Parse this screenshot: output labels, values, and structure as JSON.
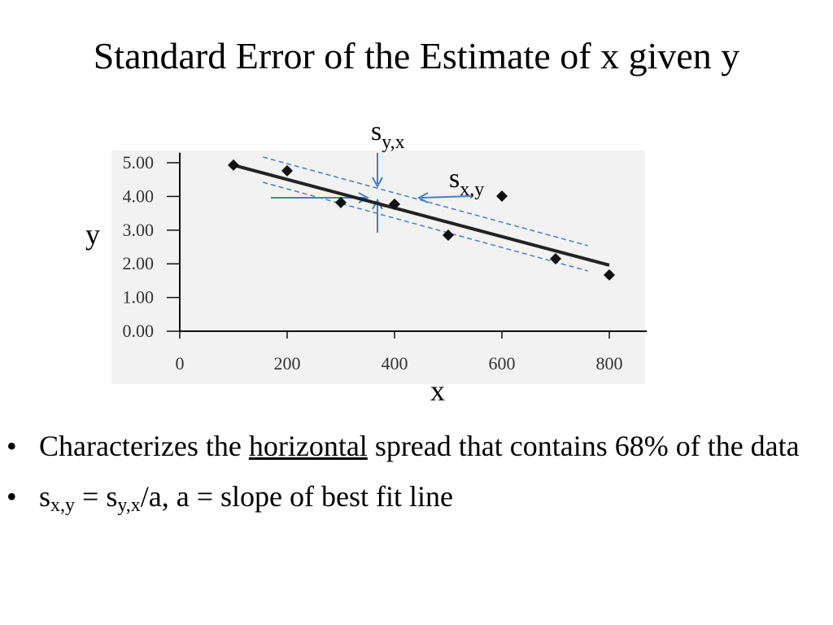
{
  "title": "Standard Error of the Estimate of x given y",
  "chart_data": {
    "type": "scatter",
    "x_label": "x",
    "y_label": "y",
    "x": [
      100,
      200,
      300,
      400,
      500,
      600,
      700,
      800
    ],
    "values": [
      4.93,
      4.76,
      3.82,
      3.77,
      2.85,
      4.01,
      2.15,
      1.67
    ],
    "color": "#111111",
    "fit_line": {
      "x": [
        100,
        800
      ],
      "y": [
        4.93,
        1.96
      ],
      "color": "#222222"
    },
    "bands": [
      {
        "x": [
          155,
          760
        ],
        "y": [
          5.17,
          2.54
        ],
        "color": "#4a7fc1"
      },
      {
        "x": [
          155,
          760
        ],
        "y": [
          4.42,
          1.79
        ],
        "color": "#4a7fc1"
      }
    ],
    "annotations": [
      {
        "text": "s",
        "sub": "y,x"
      },
      {
        "text": "s",
        "sub": "x,y"
      }
    ],
    "xlim": [
      0,
      870
    ],
    "ylim": [
      0,
      5.3
    ],
    "xticks": [
      0,
      200,
      400,
      600,
      800
    ],
    "yticks": [
      {
        "value": 0,
        "label": "0.00"
      },
      {
        "value": 1,
        "label": "1.00"
      },
      {
        "value": 2,
        "label": "2.00"
      },
      {
        "value": 3,
        "label": "3.00"
      },
      {
        "value": 4,
        "label": "4.00"
      },
      {
        "value": 5,
        "label": "5.00"
      }
    ]
  },
  "bullets": [
    {
      "parts": [
        "Characterizes the ",
        "horizontal",
        " spread that contains 68% of the data"
      ]
    },
    {
      "parts": [
        "s",
        "x,y",
        " = s",
        "y,x",
        "/a, a = slope of best fit line"
      ]
    }
  ]
}
